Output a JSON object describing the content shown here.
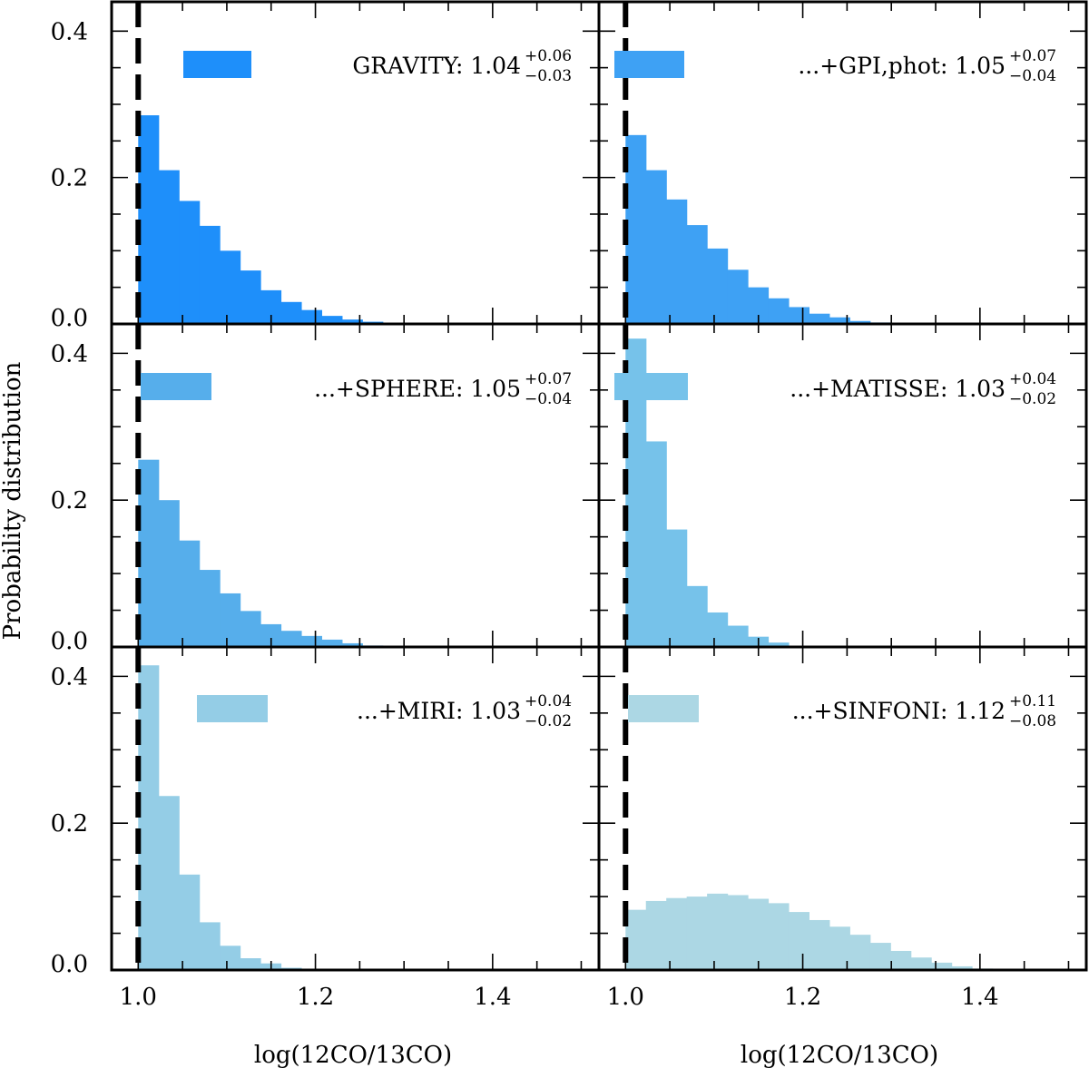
{
  "figure": {
    "ylabel": "Probability distribution",
    "xlabel": "log(12CO/13CO)",
    "xlim": [
      0.97,
      1.52
    ],
    "ylim": [
      0.0,
      0.44
    ],
    "xticks": [
      1.0,
      1.2,
      1.4
    ],
    "xtick_labels": [
      "1.0",
      "1.2",
      "1.4"
    ],
    "yticks": [
      0.0,
      0.2,
      0.4
    ],
    "ytick_labels": [
      "0.0",
      "0.2",
      "0.4"
    ],
    "reference_line_x": 1.0,
    "bin_edges": [
      1.0,
      1.023,
      1.046,
      1.069,
      1.092,
      1.115,
      1.138,
      1.161,
      1.184,
      1.207,
      1.23,
      1.253,
      1.276,
      1.299,
      1.322,
      1.345,
      1.368,
      1.391,
      1.414
    ]
  },
  "chart_data": [
    {
      "type": "bar",
      "title": "",
      "legend_name": "GRAVITY:",
      "legend_value": "1.04",
      "legend_plus": "+0.06",
      "legend_minus": "−0.03",
      "color": "#1e8ffa",
      "values": [
        0.285,
        0.21,
        0.168,
        0.134,
        0.1,
        0.073,
        0.046,
        0.03,
        0.019,
        0.011,
        0.006,
        0.003,
        0.001,
        0,
        0,
        0,
        0,
        0
      ]
    },
    {
      "type": "bar",
      "title": "",
      "legend_name": "...+GPI,phot:",
      "legend_value": "1.05",
      "legend_plus": "+0.07",
      "legend_minus": "−0.04",
      "color": "#3ea1f4",
      "values": [
        0.258,
        0.21,
        0.17,
        0.135,
        0.103,
        0.074,
        0.05,
        0.035,
        0.023,
        0.014,
        0.009,
        0.004,
        0.002,
        0,
        0,
        0,
        0,
        0
      ]
    },
    {
      "type": "bar",
      "title": "",
      "legend_name": "...+SPHERE:",
      "legend_value": "1.05",
      "legend_plus": "+0.07",
      "legend_minus": "−0.04",
      "color": "#56aeeb",
      "values": [
        0.255,
        0.2,
        0.145,
        0.105,
        0.073,
        0.049,
        0.031,
        0.022,
        0.015,
        0.01,
        0.005,
        0.002,
        0,
        0,
        0,
        0,
        0,
        0
      ]
    },
    {
      "type": "bar",
      "title": "",
      "legend_name": "...+MATISSE:",
      "legend_value": "1.03",
      "legend_plus": "+0.04",
      "legend_minus": "−0.02",
      "color": "#76c2ea",
      "values": [
        0.42,
        0.28,
        0.16,
        0.083,
        0.047,
        0.029,
        0.014,
        0.006,
        0.001,
        0,
        0,
        0,
        0,
        0,
        0,
        0,
        0,
        0
      ]
    },
    {
      "type": "bar",
      "title": "",
      "legend_name": "...+MIRI:",
      "legend_value": "1.03",
      "legend_plus": "+0.04",
      "legend_minus": "−0.02",
      "color": "#94cde6",
      "values": [
        0.415,
        0.237,
        0.13,
        0.065,
        0.033,
        0.016,
        0.009,
        0.003,
        0,
        0,
        0,
        0,
        0,
        0,
        0,
        0,
        0,
        0
      ]
    },
    {
      "type": "bar",
      "title": "",
      "legend_name": "...+SINFONI:",
      "legend_value": "1.12",
      "legend_plus": "+0.11",
      "legend_minus": "−0.08",
      "color": "#acd7e4",
      "values": [
        0.082,
        0.094,
        0.098,
        0.1,
        0.104,
        0.102,
        0.097,
        0.091,
        0.079,
        0.068,
        0.059,
        0.048,
        0.037,
        0.026,
        0.017,
        0.01,
        0.005,
        0.002
      ]
    }
  ]
}
